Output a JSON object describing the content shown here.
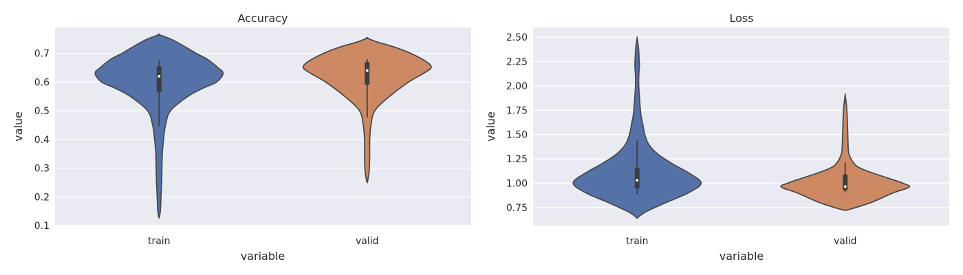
{
  "chart_data": [
    {
      "type": "violin",
      "title": "Accuracy",
      "xlabel": "variable",
      "ylabel": "value",
      "categories": [
        "train",
        "valid"
      ],
      "ylim": [
        0.1,
        0.79
      ],
      "yticks": [
        0.1,
        0.2,
        0.3,
        0.4,
        0.5,
        0.6,
        0.7
      ],
      "ytick_labels": [
        "0.1",
        "0.2",
        "0.3",
        "0.4",
        "0.5",
        "0.6",
        "0.7"
      ],
      "grid": true,
      "series": [
        {
          "category": "train",
          "color": "#5471a8",
          "range": [
            0.125,
            0.765
          ],
          "median": 0.62,
          "q1": 0.565,
          "q3": 0.655,
          "whisker": [
            0.445,
            0.675
          ],
          "density": [
            [
              0.125,
              0.0
            ],
            [
              0.15,
              0.02
            ],
            [
              0.2,
              0.03
            ],
            [
              0.25,
              0.04
            ],
            [
              0.3,
              0.045
            ],
            [
              0.35,
              0.05
            ],
            [
              0.4,
              0.07
            ],
            [
              0.45,
              0.1
            ],
            [
              0.5,
              0.18
            ],
            [
              0.55,
              0.45
            ],
            [
              0.58,
              0.7
            ],
            [
              0.6,
              0.9
            ],
            [
              0.63,
              1.0
            ],
            [
              0.65,
              0.92
            ],
            [
              0.68,
              0.75
            ],
            [
              0.7,
              0.58
            ],
            [
              0.73,
              0.35
            ],
            [
              0.75,
              0.18
            ],
            [
              0.765,
              0.0
            ]
          ]
        },
        {
          "category": "valid",
          "color": "#cc8963",
          "range": [
            0.248,
            0.753
          ],
          "median": 0.64,
          "q1": 0.59,
          "q3": 0.67,
          "whisker": [
            0.477,
            0.68
          ],
          "density": [
            [
              0.248,
              0.0
            ],
            [
              0.27,
              0.02
            ],
            [
              0.3,
              0.035
            ],
            [
              0.35,
              0.04
            ],
            [
              0.4,
              0.04
            ],
            [
              0.45,
              0.06
            ],
            [
              0.5,
              0.12
            ],
            [
              0.55,
              0.35
            ],
            [
              0.6,
              0.65
            ],
            [
              0.63,
              0.88
            ],
            [
              0.65,
              1.0
            ],
            [
              0.67,
              0.93
            ],
            [
              0.7,
              0.68
            ],
            [
              0.72,
              0.45
            ],
            [
              0.74,
              0.15
            ],
            [
              0.753,
              0.0
            ]
          ]
        }
      ]
    },
    {
      "type": "violin",
      "title": "Loss",
      "xlabel": "variable",
      "ylabel": "value",
      "categories": [
        "train",
        "valid"
      ],
      "ylim": [
        0.565,
        2.6
      ],
      "yticks": [
        0.75,
        1.0,
        1.25,
        1.5,
        1.75,
        2.0,
        2.25,
        2.5
      ],
      "ytick_labels": [
        "0.75",
        "1.00",
        "1.25",
        "1.50",
        "1.75",
        "2.00",
        "2.25",
        "2.50"
      ],
      "grid": true,
      "series": [
        {
          "category": "train",
          "color": "#5471a8",
          "range": [
            0.64,
            2.49
          ],
          "median": 1.03,
          "q1": 0.945,
          "q3": 1.16,
          "whisker": [
            0.89,
            1.44
          ],
          "density": [
            [
              0.64,
              0.0
            ],
            [
              0.7,
              0.12
            ],
            [
              0.8,
              0.45
            ],
            [
              0.9,
              0.8
            ],
            [
              1.0,
              1.0
            ],
            [
              1.1,
              0.82
            ],
            [
              1.2,
              0.55
            ],
            [
              1.3,
              0.32
            ],
            [
              1.4,
              0.18
            ],
            [
              1.5,
              0.12
            ],
            [
              1.6,
              0.09
            ],
            [
              1.7,
              0.06
            ],
            [
              1.8,
              0.045
            ],
            [
              1.9,
              0.035
            ],
            [
              2.0,
              0.025
            ],
            [
              2.1,
              0.025
            ],
            [
              2.2,
              0.035
            ],
            [
              2.3,
              0.03
            ],
            [
              2.4,
              0.02
            ],
            [
              2.49,
              0.0
            ]
          ]
        },
        {
          "category": "valid",
          "color": "#cc8963",
          "range": [
            0.72,
            1.905
          ],
          "median": 0.965,
          "q1": 0.925,
          "q3": 1.09,
          "whisker": [
            0.905,
            1.215
          ],
          "density": [
            [
              0.72,
              0.0
            ],
            [
              0.74,
              0.12
            ],
            [
              0.8,
              0.4
            ],
            [
              0.9,
              0.75
            ],
            [
              0.96,
              1.0
            ],
            [
              1.0,
              0.9
            ],
            [
              1.05,
              0.68
            ],
            [
              1.1,
              0.45
            ],
            [
              1.15,
              0.25
            ],
            [
              1.2,
              0.14
            ],
            [
              1.3,
              0.06
            ],
            [
              1.4,
              0.045
            ],
            [
              1.5,
              0.04
            ],
            [
              1.6,
              0.035
            ],
            [
              1.7,
              0.03
            ],
            [
              1.8,
              0.02
            ],
            [
              1.905,
              0.0
            ]
          ]
        }
      ]
    }
  ]
}
